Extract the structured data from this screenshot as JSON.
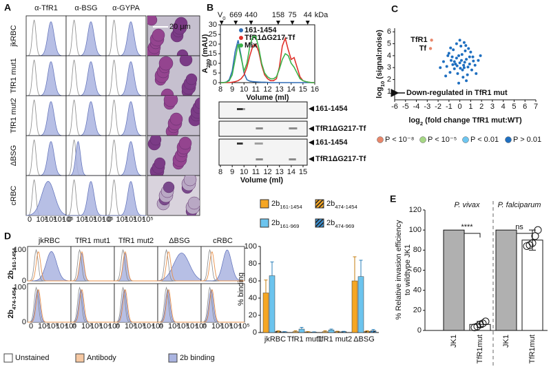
{
  "panel_A": {
    "label": "A",
    "columns": [
      "α-TfR1",
      "α-BSG",
      "α-GYPA"
    ],
    "rows": [
      "jkRBC",
      "TfR1 mut1",
      "TfR1 mut2",
      "ΔBSG",
      "cRBC"
    ],
    "scale_bar": "20 μm",
    "xticks": [
      "0",
      "10²",
      "10³",
      "10⁴",
      "10⁵"
    ]
  },
  "panel_B": {
    "label": "B",
    "markers": [
      {
        "label": "V",
        "sub": "0",
        "volume": 8.1
      },
      {
        "label": "669",
        "volume": 9.3
      },
      {
        "label": "440",
        "volume": 10.6
      },
      {
        "label": "158",
        "volume": 12.9
      },
      {
        "label": "75",
        "volume": 14.1
      },
      {
        "label": "44",
        "volume": 15.4
      }
    ],
    "marker_unit": "kDa",
    "chart": {
      "type": "line",
      "ylabel": {
        "main": "A",
        "sub": "280",
        "rest": " (mAU)"
      },
      "xlabel": "Volume (ml)",
      "x": [
        8,
        8.25,
        8.5,
        8.75,
        9,
        9.25,
        9.5,
        9.75,
        10,
        10.25,
        10.5,
        10.75,
        11,
        11.25,
        11.5,
        11.75,
        12,
        12.25,
        12.5,
        12.75,
        13,
        13.25,
        13.5,
        13.75,
        14,
        14.25,
        14.5,
        14.75,
        15,
        15.25,
        15.5,
        15.75,
        16
      ],
      "xlim": [
        8,
        16
      ],
      "xticks": [
        8,
        9,
        10,
        11,
        12,
        13,
        14,
        15,
        16
      ],
      "ylim": [
        0,
        30
      ],
      "yticks": [
        0,
        5,
        10,
        15,
        20,
        25,
        30
      ],
      "series": [
        {
          "name": "161-1454",
          "color": "#2f6db5",
          "values": [
            0,
            0,
            0.3,
            1.5,
            6,
            16,
            22,
            14,
            5,
            1.5,
            0.8,
            0.5,
            0.4,
            0.3,
            0.2,
            0.2,
            0.1,
            0,
            0,
            0,
            0,
            0,
            0,
            0,
            0,
            0,
            0,
            0,
            0,
            0,
            0,
            0,
            0
          ]
        },
        {
          "name": "TfR1ΔG217-Tf",
          "color": "#e0302a",
          "values": [
            0,
            0,
            0,
            0,
            0.2,
            0.5,
            1,
            2,
            4,
            8,
            14,
            19,
            20,
            16,
            9,
            4,
            2,
            1,
            1,
            2,
            8,
            19,
            23,
            17,
            12,
            13,
            8,
            3,
            1,
            0.5,
            0.2,
            0,
            0
          ]
        },
        {
          "name": "Mix",
          "color": "#3cb44b",
          "values": [
            0,
            0,
            0.2,
            1,
            4,
            12,
            20,
            13,
            6,
            10,
            19,
            24,
            24,
            18,
            10,
            5,
            3,
            2,
            2,
            3,
            7,
            12,
            15,
            14,
            10,
            8,
            5,
            2,
            1,
            0.5,
            0.2,
            0,
            0
          ]
        }
      ]
    },
    "gel": {
      "labels": [
        "161-1454",
        "TfR1ΔG217-Tf",
        "161-1454",
        "TfR1ΔG217-Tf"
      ],
      "xlim": [
        8,
        15
      ],
      "xticks": [
        8,
        9,
        10,
        11,
        12,
        13,
        14,
        15
      ],
      "xlabel": "Volume (ml)"
    }
  },
  "panel_C": {
    "label": "C",
    "type": "scatter",
    "xlabel": {
      "main": "log",
      "sub": "2",
      "rest": " (fold change TfR1 mut:WT)"
    },
    "ylabel": {
      "main": "log",
      "sub": "10",
      "rest": " (signal:noise)"
    },
    "xlim": [
      -6,
      7
    ],
    "xticks": [
      -6,
      -5,
      -4,
      -3,
      -2,
      -1,
      0,
      1,
      2,
      3,
      4,
      5,
      6,
      7
    ],
    "ylim": [
      0.3,
      6.3
    ],
    "yticks": [
      1,
      2,
      3,
      4,
      5,
      6
    ],
    "arrow_text": "Down-regulated in TfR1 mut",
    "legend": [
      {
        "label": "P < 10⁻⁸",
        "color": "#e8866a"
      },
      {
        "label": "P < 10⁻⁵",
        "color": "#a6d785"
      },
      {
        "label": "P < 0.01",
        "color": "#6ec6f0"
      },
      {
        "label": "P > 0.01",
        "color": "#1f6fc0"
      }
    ],
    "highlights": [
      {
        "label": "TfR1",
        "x": -2.6,
        "y": 5.3
      },
      {
        "label": "Tf",
        "x": -2.7,
        "y": 4.6
      }
    ],
    "points": {
      "x": [
        -1.2,
        -0.8,
        -0.5,
        -0.3,
        0,
        0.2,
        0.4,
        0.6,
        0.9,
        1.2,
        -1.5,
        -1,
        -0.6,
        0.1,
        0.5,
        0.8,
        1.4,
        1.7,
        -0.2,
        0.3,
        -0.9,
        0.7,
        1.1,
        -1.8,
        -0.4,
        0.15,
        0.35,
        -0.1,
        -0.7,
        1,
        0,
        -0.3,
        0.4,
        1.9,
        -1.3,
        0.6,
        -0.1,
        0.9,
        -0.5,
        0.25,
        1.5,
        -1.1,
        0.45,
        -0.25,
        0.05,
        0.75,
        -0.65,
        1.25,
        -0.85,
        0.55
      ],
      "y": [
        3.1,
        3.6,
        2.9,
        3.8,
        3.4,
        4.1,
        3,
        3.7,
        3.3,
        3.9,
        3.5,
        4.2,
        4.5,
        4.8,
        4.4,
        4.6,
        3.2,
        3.6,
        2.5,
        2.2,
        2.6,
        2.4,
        2.8,
        3,
        3.3,
        3.6,
        3.2,
        4,
        3.9,
        4.3,
        5.3,
        5,
        5.1,
        4,
        2.3,
        1.9,
        1.7,
        3.9,
        3.5,
        2.8,
        2.5,
        4,
        3.45,
        3.15,
        2.95,
        3.05,
        3.25,
        3.55,
        4.65,
        4.85
      ]
    }
  },
  "panel_D": {
    "label": "D",
    "columns": [
      "jkRBC",
      "TfR1 mut1",
      "TfR1 mut2",
      "ΔBSG",
      "cRBC"
    ],
    "rows": [
      {
        "name": "2b",
        "sub": "161-1454"
      },
      {
        "name": "2b",
        "sub": "474-1454"
      }
    ],
    "xticks": [
      "0",
      "10²",
      "10³",
      "10⁴",
      "10⁵"
    ],
    "yticks": [
      0,
      100
    ],
    "legend": [
      {
        "label": "Unstained",
        "color": "#ffffff"
      },
      {
        "label": "Antibody",
        "color": "#f6c8a2"
      },
      {
        "label": "2b binding",
        "color": "#aab4e0"
      }
    ],
    "chart": {
      "type": "bar",
      "ylabel": "% binding",
      "categories": [
        "jkRBC",
        "TfR1 mut1",
        "TfR1 mut2",
        "ΔBSG"
      ],
      "ylim": [
        0,
        100
      ],
      "yticks": [
        0,
        20,
        40,
        60,
        80,
        100
      ],
      "series": [
        {
          "name": "2b",
          "sub": "161-1454",
          "color": "#f5a623",
          "hatch": false,
          "values": [
            46,
            1,
            1,
            60
          ],
          "errors": [
            15,
            1,
            1,
            28
          ]
        },
        {
          "name": "2b",
          "sub": "161-969",
          "color": "#6cc4ee",
          "hatch": false,
          "values": [
            66,
            4,
            3,
            65
          ],
          "errors": [
            16,
            2,
            1,
            19
          ]
        },
        {
          "name": "2b",
          "sub": "474-1454",
          "color": "#f5a623",
          "hatch": true,
          "values": [
            1.5,
            0.8,
            1,
            1.5
          ],
          "errors": [
            0.5,
            0.3,
            0.5,
            0.5
          ]
        },
        {
          "name": "2b",
          "sub": "474-969",
          "color": "#3a8fd0",
          "hatch": true,
          "values": [
            0.8,
            0.5,
            1,
            2
          ],
          "errors": [
            0.3,
            0.3,
            0.4,
            1.5
          ]
        }
      ]
    }
  },
  "panel_E": {
    "label": "E",
    "type": "bar",
    "ylabel": [
      "% Relative invasion efficiency",
      "to wildtype JK1"
    ],
    "ylim": [
      0,
      120
    ],
    "yticks": [
      0,
      20,
      40,
      60,
      80,
      100,
      120
    ],
    "groups": [
      {
        "title": "P. vivax",
        "significance": "****",
        "bars": [
          {
            "category": "JK1",
            "value": 100,
            "color": "#b0b0b0"
          },
          {
            "category": "TfR1mut",
            "value": 6,
            "color": "#ffffff",
            "error": 3,
            "points": [
              3,
              4,
              6,
              7,
              9
            ]
          }
        ]
      },
      {
        "title": "P. falciparum",
        "significance": "ns",
        "bars": [
          {
            "category": "JK1",
            "value": 100,
            "color": "#b0b0b0"
          },
          {
            "category": "TfR1mut",
            "value": 90,
            "color": "#ffffff",
            "error": 10,
            "points": [
              84,
              85,
              87,
              94,
              100
            ]
          }
        ]
      }
    ]
  }
}
